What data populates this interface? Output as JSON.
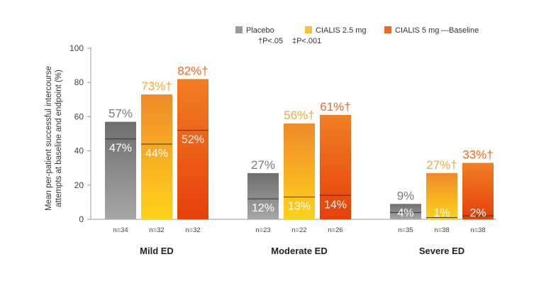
{
  "chart_data": {
    "type": "bar",
    "ylabel": [
      "Mean per-patient successful intercourse",
      "attempts at baseline and endpoint (%)"
    ],
    "ylim": [
      0,
      100
    ],
    "yticks": [
      0,
      20,
      40,
      60,
      80,
      100
    ],
    "grid": false,
    "legend_position": "top-right",
    "categories": [
      "Mild ED",
      "Moderate ED",
      "Severe ED"
    ],
    "series": [
      {
        "name": "Placebo",
        "color": "#8f8f8f",
        "values": [
          57,
          27,
          9
        ],
        "value_labels": [
          "57%",
          "27%",
          "9%"
        ],
        "baseline": [
          47,
          12,
          4
        ],
        "baseline_labels": [
          "47%",
          "12%",
          "4%"
        ],
        "n": [
          "n=34",
          "n=23",
          "n=35"
        ]
      },
      {
        "name": "CIALIS 2.5 mg",
        "color": "#f7b731",
        "values": [
          73,
          56,
          27
        ],
        "value_labels": [
          "73%†",
          "56%†",
          "27%†"
        ],
        "baseline": [
          44,
          13,
          1
        ],
        "baseline_labels": [
          "44%",
          "13%",
          "1%"
        ],
        "n": [
          "n=32",
          "n=22",
          "n=38"
        ]
      },
      {
        "name": "CIALIS 5 mg",
        "color": "#ee6a1f",
        "values": [
          82,
          61,
          33
        ],
        "value_labels": [
          "82%†",
          "61%†",
          "33%†"
        ],
        "baseline": [
          52,
          14,
          2
        ],
        "baseline_labels": [
          "52%",
          "14%",
          "2%"
        ],
        "n": [
          "n=32",
          "n=26",
          "n=38"
        ]
      }
    ],
    "baseline_legend": "—Baseline",
    "footnotes": [
      "†P<.05",
      "‡P<.001"
    ]
  }
}
